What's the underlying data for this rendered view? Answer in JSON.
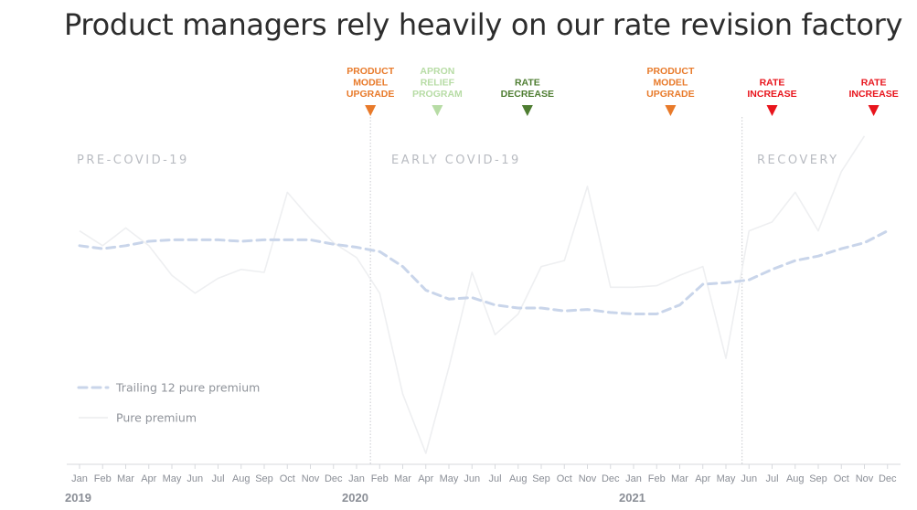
{
  "title": "Product managers rely heavily on our rate revision factory",
  "colors": {
    "trailing": "#c9d5ea",
    "pure": "#eeeff1",
    "orange": "#e87a2a",
    "light_green": "#b7dca5",
    "dark_green": "#4e7d31",
    "red": "#e8141c",
    "phase_text": "#b9bcc2",
    "axis_text": "#8a8e96"
  },
  "chart_data": {
    "type": "line",
    "title": "Product managers rely heavily on our rate revision factory",
    "xlabel": "",
    "ylabel": "",
    "ylim": [
      0,
      100
    ],
    "grid": false,
    "legend_position": "bottom-left",
    "categories": [
      "Jan",
      "Feb",
      "Mar",
      "Apr",
      "May",
      "Jun",
      "Jul",
      "Aug",
      "Sep",
      "Oct",
      "Nov",
      "Dec",
      "Jan",
      "Feb",
      "Mar",
      "Apr",
      "May",
      "Jun",
      "Jul",
      "Aug",
      "Sep",
      "Oct",
      "Nov",
      "Dec",
      "Jan",
      "Feb",
      "Mar",
      "Apr",
      "May",
      "Jun",
      "Jul",
      "Aug",
      "Sep",
      "Oct",
      "Nov",
      "Dec"
    ],
    "years": [
      {
        "label": "2019",
        "index": 0
      },
      {
        "label": "2020",
        "index": 12
      },
      {
        "label": "2021",
        "index": 24
      }
    ],
    "series": [
      {
        "name": "Trailing 12 pure premium",
        "style": "dashed",
        "values": [
          66,
          65,
          66,
          67.5,
          68,
          68,
          68,
          67.5,
          68,
          68,
          68,
          66.5,
          65.5,
          64,
          59,
          51,
          48,
          48.5,
          46,
          45,
          45,
          44,
          44.5,
          43.5,
          43,
          43,
          46,
          53,
          53.5,
          54.5,
          58,
          61,
          62.5,
          65,
          67,
          71
        ]
      },
      {
        "name": "Pure premium",
        "style": "solid",
        "values": [
          71,
          66,
          72,
          66,
          56,
          50,
          55,
          58,
          57,
          84,
          75,
          67,
          62,
          50,
          16,
          -4,
          25,
          57,
          36,
          43,
          59,
          61,
          86,
          52,
          52,
          52.5,
          56,
          59,
          28,
          71,
          74,
          84,
          71,
          91,
          103,
          null
        ]
      }
    ],
    "phases": [
      {
        "label": "PRE-COVID-19",
        "start_index": 0
      },
      {
        "label": "EARLY COVID-19",
        "start_index": 12
      },
      {
        "label": "RECOVERY",
        "start_index": 29
      }
    ],
    "dividers_at_index": [
      12.6,
      28.7
    ],
    "events": [
      {
        "lines": [
          "PRODUCT",
          "MODEL",
          "UPGRADE"
        ],
        "index": 12.6,
        "color": "orange"
      },
      {
        "lines": [
          "APRON",
          "RELIEF",
          "PROGRAM"
        ],
        "index": 15.5,
        "color": "light_green"
      },
      {
        "lines": [
          "RATE",
          "DECREASE"
        ],
        "index": 19.4,
        "color": "dark_green"
      },
      {
        "lines": [
          "PRODUCT",
          "MODEL",
          "UPGRADE"
        ],
        "index": 25.6,
        "color": "orange"
      },
      {
        "lines": [
          "RATE",
          "INCREASE"
        ],
        "index": 30.0,
        "color": "red"
      },
      {
        "lines": [
          "RATE",
          "INCREASE"
        ],
        "index": 34.4,
        "color": "red"
      }
    ]
  }
}
